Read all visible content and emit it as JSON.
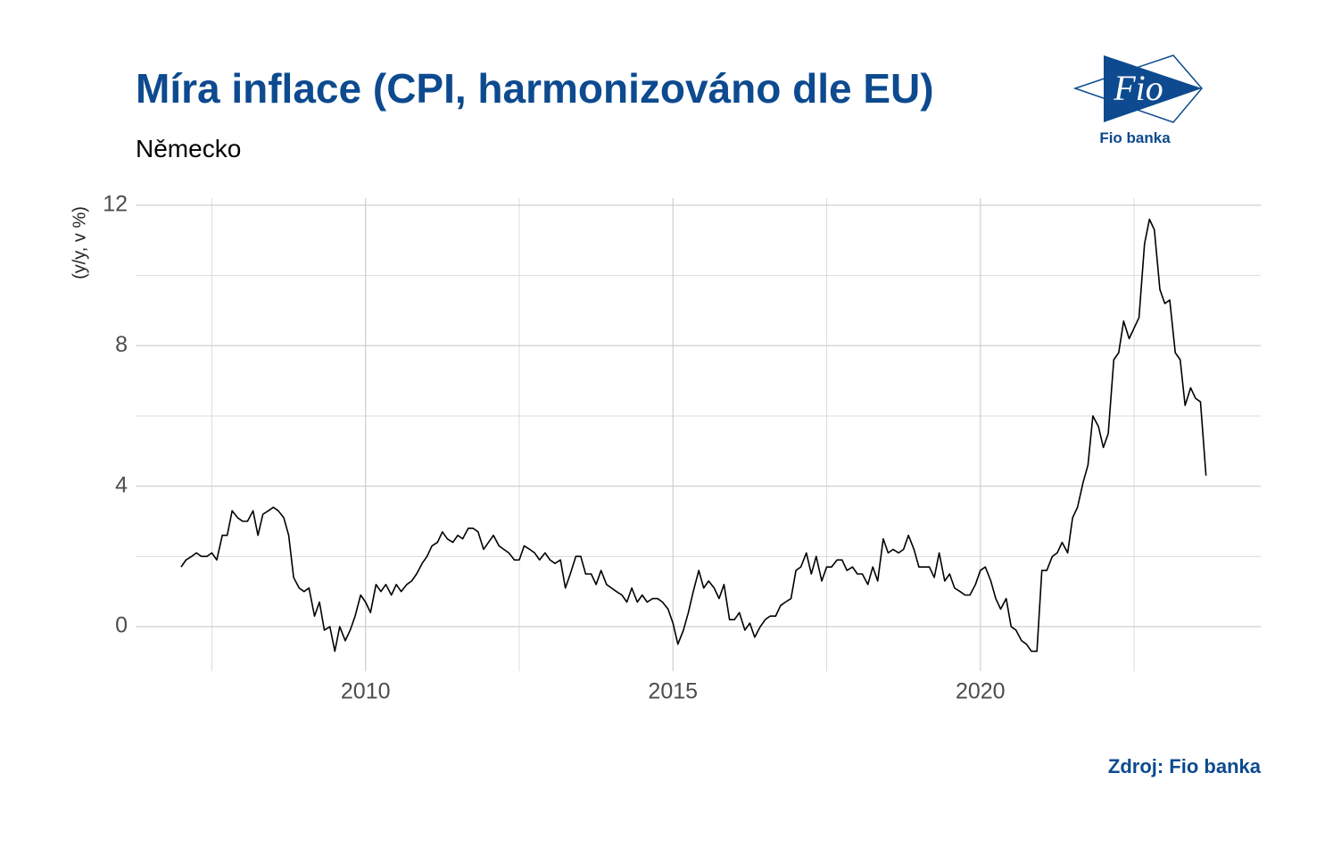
{
  "chart_data": {
    "type": "line",
    "title": "Míra inflace (CPI, harmonizováno dle EU)",
    "subtitle": "Německo",
    "y_label": "(y/y, v %)",
    "source": "Zdroj: Fio banka",
    "logo": {
      "mark": "Fio",
      "name": "Fio banka"
    },
    "color": "#000000",
    "grid": true,
    "xlim": [
      2006.26,
      2024.56
    ],
    "xticks": [
      2010,
      2015,
      2020
    ],
    "ylim": [
      -1.27,
      12.2
    ],
    "yticks": [
      0,
      4,
      8,
      12
    ],
    "x": [
      2007,
      2007.08,
      2007.17,
      2007.25,
      2007.33,
      2007.42,
      2007.5,
      2007.58,
      2007.67,
      2007.75,
      2007.83,
      2007.92,
      2008,
      2008.08,
      2008.17,
      2008.25,
      2008.33,
      2008.42,
      2008.5,
      2008.58,
      2008.67,
      2008.75,
      2008.83,
      2008.92,
      2009,
      2009.08,
      2009.17,
      2009.25,
      2009.33,
      2009.42,
      2009.5,
      2009.58,
      2009.67,
      2009.75,
      2009.83,
      2009.92,
      2010,
      2010.08,
      2010.17,
      2010.25,
      2010.33,
      2010.42,
      2010.5,
      2010.58,
      2010.67,
      2010.75,
      2010.83,
      2010.92,
      2011,
      2011.08,
      2011.17,
      2011.25,
      2011.33,
      2011.42,
      2011.5,
      2011.58,
      2011.67,
      2011.75,
      2011.83,
      2011.92,
      2012,
      2012.08,
      2012.17,
      2012.25,
      2012.33,
      2012.42,
      2012.5,
      2012.58,
      2012.67,
      2012.75,
      2012.83,
      2012.92,
      2013,
      2013.08,
      2013.17,
      2013.25,
      2013.33,
      2013.42,
      2013.5,
      2013.58,
      2013.67,
      2013.75,
      2013.83,
      2013.92,
      2014,
      2014.08,
      2014.17,
      2014.25,
      2014.33,
      2014.42,
      2014.5,
      2014.58,
      2014.67,
      2014.75,
      2014.83,
      2014.92,
      2015,
      2015.08,
      2015.17,
      2015.25,
      2015.33,
      2015.42,
      2015.5,
      2015.58,
      2015.67,
      2015.75,
      2015.83,
      2015.92,
      2016,
      2016.08,
      2016.17,
      2016.25,
      2016.33,
      2016.42,
      2016.5,
      2016.58,
      2016.67,
      2016.75,
      2016.83,
      2016.92,
      2017,
      2017.08,
      2017.17,
      2017.25,
      2017.33,
      2017.42,
      2017.5,
      2017.58,
      2017.67,
      2017.75,
      2017.83,
      2017.92,
      2018,
      2018.08,
      2018.17,
      2018.25,
      2018.33,
      2018.42,
      2018.5,
      2018.58,
      2018.67,
      2018.75,
      2018.83,
      2018.92,
      2019,
      2019.08,
      2019.17,
      2019.25,
      2019.33,
      2019.42,
      2019.5,
      2019.58,
      2019.67,
      2019.75,
      2019.83,
      2019.92,
      2020,
      2020.08,
      2020.17,
      2020.25,
      2020.33,
      2020.42,
      2020.5,
      2020.58,
      2020.67,
      2020.75,
      2020.83,
      2020.92,
      2021,
      2021.08,
      2021.17,
      2021.25,
      2021.33,
      2021.42,
      2021.5,
      2021.58,
      2021.67,
      2021.75,
      2021.83,
      2021.92,
      2022,
      2022.08,
      2022.17,
      2022.25,
      2022.33,
      2022.42,
      2022.5,
      2022.58,
      2022.67,
      2022.75,
      2022.83,
      2022.92,
      2023,
      2023.08,
      2023.17,
      2023.25,
      2023.33,
      2023.42,
      2023.5,
      2023.58,
      2023.67
    ],
    "values": [
      1.7,
      1.9,
      2.0,
      2.1,
      2.0,
      2.0,
      2.1,
      1.9,
      2.6,
      2.6,
      3.3,
      3.1,
      3.0,
      3.0,
      3.3,
      2.6,
      3.2,
      3.3,
      3.4,
      3.3,
      3.1,
      2.6,
      1.4,
      1.1,
      1.0,
      1.1,
      0.3,
      0.7,
      -0.1,
      0.0,
      -0.7,
      0.0,
      -0.4,
      -0.1,
      0.3,
      0.9,
      0.7,
      0.4,
      1.2,
      1.0,
      1.2,
      0.9,
      1.2,
      1.0,
      1.2,
      1.3,
      1.5,
      1.8,
      2.0,
      2.3,
      2.4,
      2.7,
      2.5,
      2.4,
      2.6,
      2.5,
      2.8,
      2.8,
      2.7,
      2.2,
      2.4,
      2.6,
      2.3,
      2.2,
      2.1,
      1.9,
      1.9,
      2.3,
      2.2,
      2.1,
      1.9,
      2.1,
      1.9,
      1.8,
      1.9,
      1.1,
      1.5,
      2.0,
      2.0,
      1.5,
      1.5,
      1.2,
      1.6,
      1.2,
      1.1,
      1.0,
      0.9,
      0.7,
      1.1,
      0.7,
      0.9,
      0.7,
      0.8,
      0.8,
      0.7,
      0.5,
      0.1,
      -0.5,
      -0.1,
      0.4,
      1.0,
      1.6,
      1.1,
      1.3,
      1.1,
      0.8,
      1.2,
      0.2,
      0.2,
      0.4,
      -0.1,
      0.1,
      -0.3,
      0.0,
      0.2,
      0.3,
      0.3,
      0.6,
      0.7,
      0.8,
      1.6,
      1.7,
      2.1,
      1.5,
      2.0,
      1.3,
      1.7,
      1.7,
      1.9,
      1.9,
      1.6,
      1.7,
      1.5,
      1.5,
      1.2,
      1.7,
      1.3,
      2.5,
      2.1,
      2.2,
      2.1,
      2.2,
      2.6,
      2.2,
      1.7,
      1.7,
      1.7,
      1.4,
      2.1,
      1.3,
      1.5,
      1.1,
      1.0,
      0.9,
      0.9,
      1.2,
      1.6,
      1.7,
      1.3,
      0.8,
      0.5,
      0.8,
      0.0,
      -0.1,
      -0.4,
      -0.5,
      -0.7,
      -0.7,
      1.6,
      1.6,
      2.0,
      2.1,
      2.4,
      2.1,
      3.1,
      3.4,
      4.1,
      4.6,
      6.0,
      5.7,
      5.1,
      5.5,
      7.6,
      7.8,
      8.7,
      8.2,
      8.5,
      8.8,
      10.9,
      11.6,
      11.3,
      9.6,
      9.2,
      9.3,
      7.8,
      7.6,
      6.3,
      6.8,
      6.5,
      6.4,
      4.3
    ]
  }
}
